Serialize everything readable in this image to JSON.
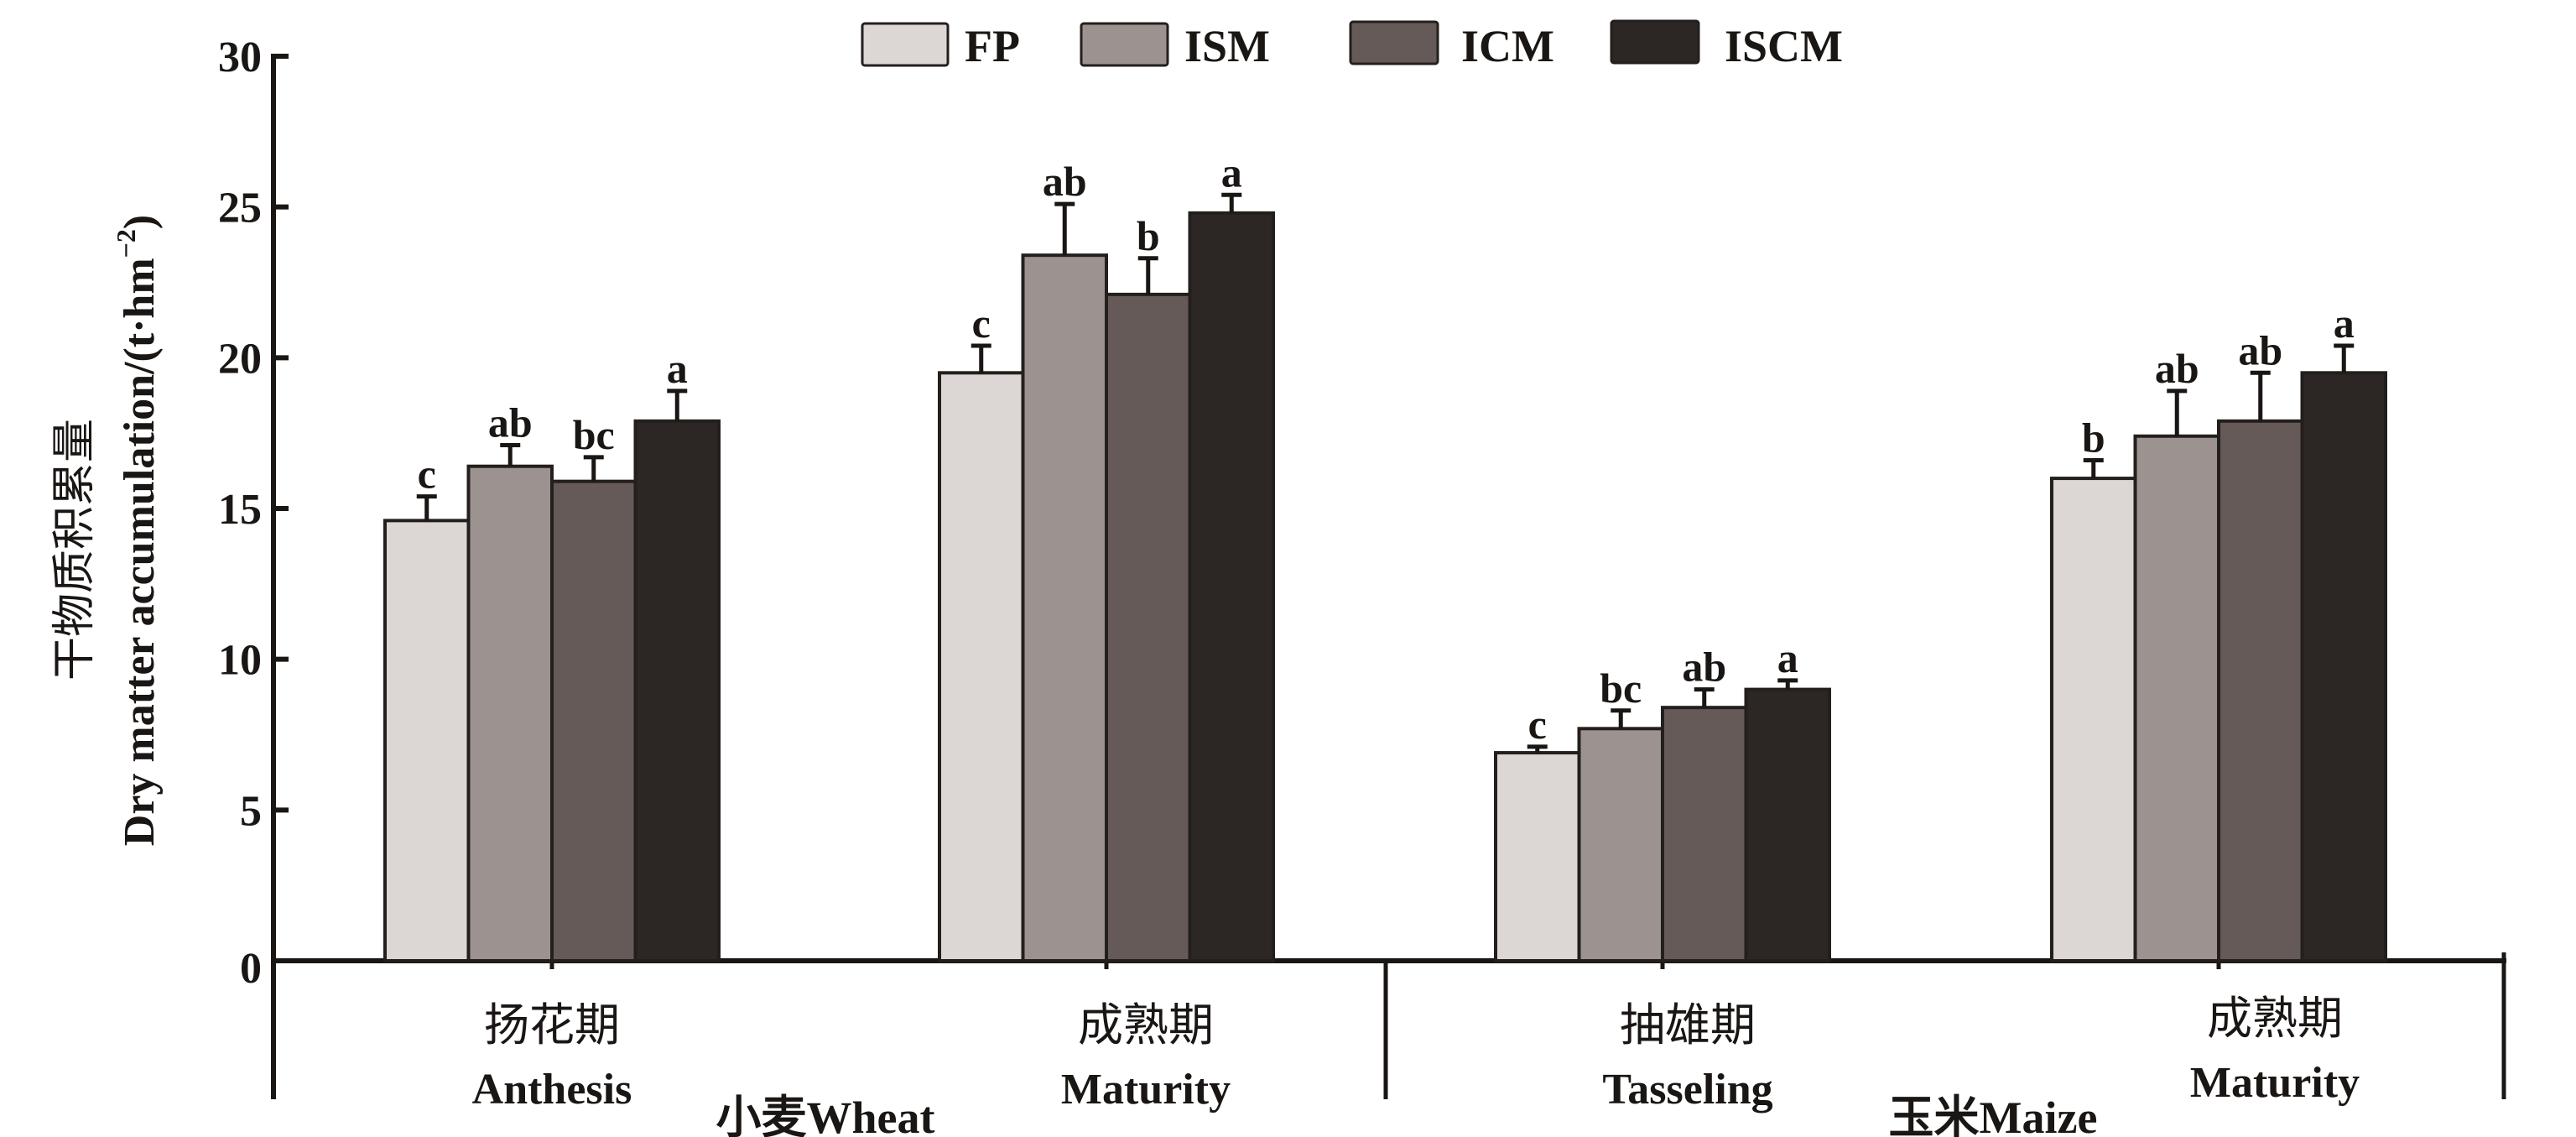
{
  "chart_data": {
    "type": "bar",
    "ylabel_zh": "干物质积累量",
    "ylabel_en": "Dry matter accumulation/(t·hm",
    "ylabel_en_sup": "−2",
    "ylabel_en_close": ")",
    "ylim": [
      0,
      30
    ],
    "yticks": [
      0,
      5,
      10,
      15,
      20,
      25,
      30
    ],
    "ytick_labels": [
      "0",
      "5",
      "10",
      "15",
      "20",
      "25",
      "30"
    ],
    "grid": false,
    "legend_position": "top-center",
    "series_names": [
      "FP",
      "ISM",
      "ICM",
      "ISCM"
    ],
    "colors": {
      "FP": "#dcd6d5",
      "ISM": "#9c9391",
      "ICM": "#655a57",
      "ISCM": "#2c2724",
      "outline": "#231f1c"
    },
    "groups": [
      {
        "label": "小麦Wheat",
        "categories": [
          {
            "label_zh": "扬花期",
            "label_en": "Anthesis",
            "values": [
              14.6,
              16.4,
              15.9,
              17.9
            ],
            "errors": [
              0.8,
              0.7,
              0.8,
              1.0
            ],
            "significance": [
              "c",
              "ab",
              "bc",
              "a"
            ]
          },
          {
            "label_zh": "成熟期",
            "label_en": "Maturity",
            "values": [
              19.5,
              23.4,
              22.1,
              24.8
            ],
            "errors": [
              0.9,
              1.7,
              1.2,
              0.6
            ],
            "significance": [
              "c",
              "ab",
              "b",
              "a"
            ]
          }
        ]
      },
      {
        "label": "玉米Maize",
        "categories": [
          {
            "label_zh": "抽雄期",
            "label_en": "Tasseling",
            "values": [
              6.9,
              7.7,
              8.4,
              9.0
            ],
            "errors": [
              0.2,
              0.6,
              0.6,
              0.3
            ],
            "significance": [
              "c",
              "bc",
              "ab",
              "a"
            ]
          },
          {
            "label_zh": "成熟期",
            "label_en": "Maturity",
            "values": [
              16.0,
              17.4,
              17.9,
              19.5
            ],
            "errors": [
              0.6,
              1.5,
              1.6,
              0.9
            ],
            "significance": [
              "b",
              "ab",
              "ab",
              "a"
            ]
          }
        ]
      }
    ]
  }
}
